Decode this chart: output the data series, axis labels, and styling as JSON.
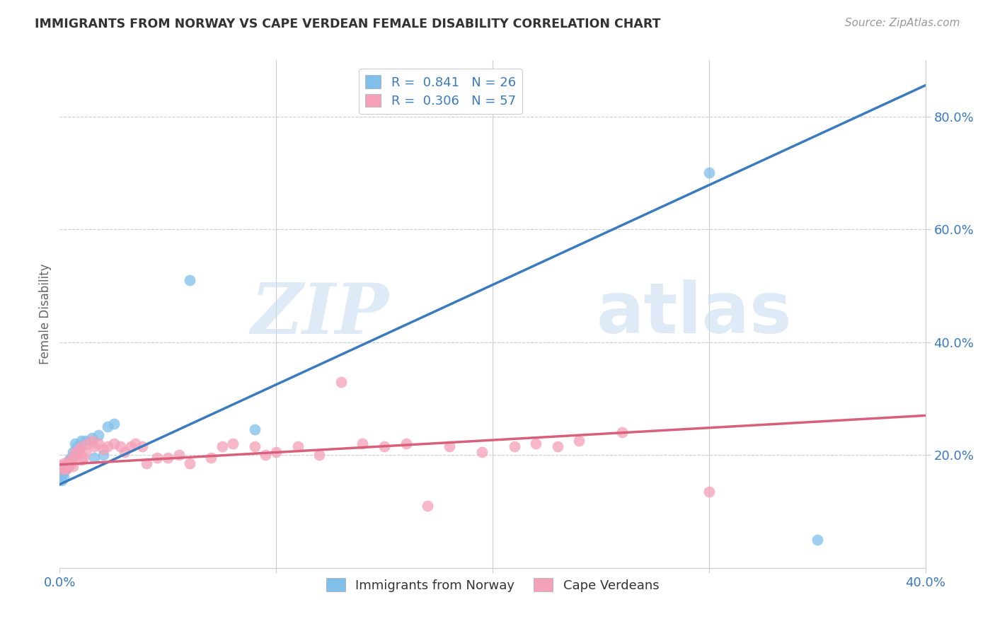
{
  "title": "IMMIGRANTS FROM NORWAY VS CAPE VERDEAN FEMALE DISABILITY CORRELATION CHART",
  "source": "Source: ZipAtlas.com",
  "ylabel": "Female Disability",
  "xlim": [
    0.0,
    0.4
  ],
  "ylim": [
    0.0,
    0.9
  ],
  "y_ticks_right": [
    0.2,
    0.4,
    0.6,
    0.8
  ],
  "y_tick_labels_right": [
    "20.0%",
    "40.0%",
    "60.0%",
    "80.0%"
  ],
  "norway_color": "#7fbfea",
  "cv_color": "#f4a0b8",
  "norway_line_color": "#3a7abf",
  "cv_line_color": "#d9607a",
  "legend_norway_label": "R =  0.841   N = 26",
  "legend_cv_label": "R =  0.306   N = 57",
  "legend_label_norway": "Immigrants from Norway",
  "legend_label_cv": "Cape Verdeans",
  "watermark_zip": "ZIP",
  "watermark_atlas": "atlas",
  "norway_x": [
    0.001,
    0.001,
    0.002,
    0.002,
    0.002,
    0.003,
    0.003,
    0.004,
    0.005,
    0.005,
    0.006,
    0.007,
    0.008,
    0.009,
    0.01,
    0.012,
    0.015,
    0.016,
    0.018,
    0.02,
    0.022,
    0.025,
    0.06,
    0.09,
    0.3,
    0.35
  ],
  "norway_y": [
    0.155,
    0.165,
    0.16,
    0.17,
    0.175,
    0.178,
    0.182,
    0.19,
    0.185,
    0.195,
    0.205,
    0.22,
    0.215,
    0.21,
    0.225,
    0.225,
    0.23,
    0.195,
    0.235,
    0.2,
    0.25,
    0.255,
    0.51,
    0.245,
    0.7,
    0.05
  ],
  "cv_x": [
    0.001,
    0.001,
    0.002,
    0.002,
    0.003,
    0.003,
    0.004,
    0.004,
    0.005,
    0.005,
    0.006,
    0.006,
    0.007,
    0.008,
    0.009,
    0.01,
    0.01,
    0.011,
    0.012,
    0.013,
    0.015,
    0.016,
    0.018,
    0.02,
    0.022,
    0.025,
    0.028,
    0.03,
    0.033,
    0.035,
    0.038,
    0.04,
    0.045,
    0.05,
    0.055,
    0.06,
    0.07,
    0.075,
    0.08,
    0.09,
    0.095,
    0.1,
    0.11,
    0.12,
    0.13,
    0.14,
    0.15,
    0.16,
    0.17,
    0.18,
    0.195,
    0.21,
    0.22,
    0.23,
    0.24,
    0.26,
    0.3
  ],
  "cv_y": [
    0.175,
    0.182,
    0.178,
    0.185,
    0.175,
    0.183,
    0.18,
    0.188,
    0.185,
    0.192,
    0.18,
    0.195,
    0.205,
    0.2,
    0.21,
    0.215,
    0.192,
    0.195,
    0.205,
    0.22,
    0.225,
    0.215,
    0.22,
    0.21,
    0.215,
    0.22,
    0.215,
    0.205,
    0.215,
    0.22,
    0.215,
    0.185,
    0.195,
    0.195,
    0.2,
    0.185,
    0.195,
    0.215,
    0.22,
    0.215,
    0.2,
    0.205,
    0.215,
    0.2,
    0.33,
    0.22,
    0.215,
    0.22,
    0.11,
    0.215,
    0.205,
    0.215,
    0.22,
    0.215,
    0.225,
    0.24,
    0.135
  ]
}
